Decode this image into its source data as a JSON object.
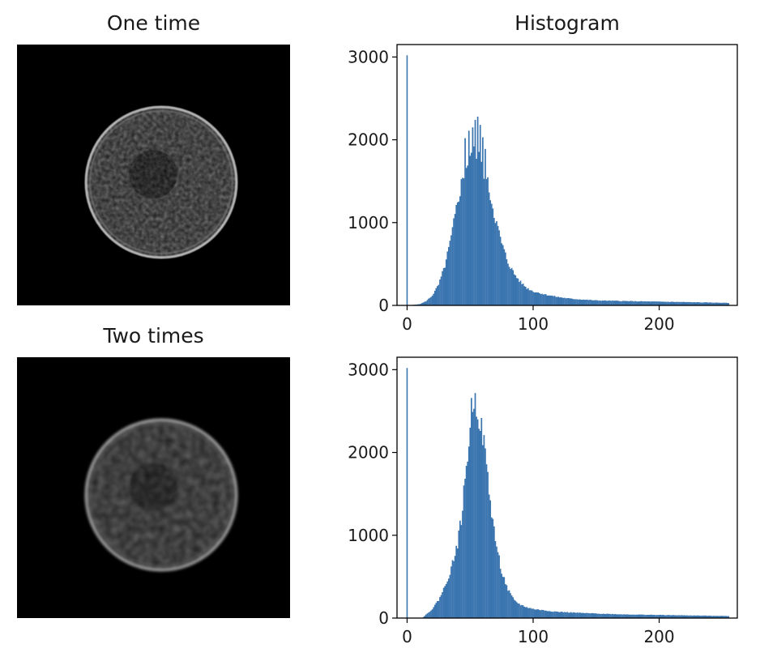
{
  "titles": {
    "row1_image": "One time",
    "row1_hist": "Histogram",
    "row2_image": "Two times"
  },
  "colors": {
    "bar": "#3b75af",
    "axis": "#000000",
    "image_bg": "#000000"
  },
  "chart_data": [
    {
      "type": "bar",
      "title": "Histogram",
      "xlabel": "",
      "ylabel": "",
      "xlim": [
        -8,
        262
      ],
      "ylim": [
        0,
        3150
      ],
      "xticks": [
        0,
        100,
        200
      ],
      "yticks": [
        0,
        1000,
        2000,
        3000
      ],
      "grid": false,
      "spike": {
        "x": 0,
        "value": 3020
      },
      "bins": {
        "start": 1,
        "end": 255,
        "points": [
          [
            1,
            0
          ],
          [
            10,
            15
          ],
          [
            15,
            50
          ],
          [
            20,
            120
          ],
          [
            25,
            250
          ],
          [
            30,
            480
          ],
          [
            35,
            820
          ],
          [
            40,
            1250
          ],
          [
            45,
            1600
          ],
          [
            50,
            1820
          ],
          [
            55,
            1830
          ],
          [
            60,
            1680
          ],
          [
            65,
            1400
          ],
          [
            70,
            1050
          ],
          [
            75,
            750
          ],
          [
            80,
            520
          ],
          [
            85,
            380
          ],
          [
            90,
            280
          ],
          [
            95,
            210
          ],
          [
            100,
            170
          ],
          [
            110,
            130
          ],
          [
            120,
            100
          ],
          [
            130,
            80
          ],
          [
            150,
            60
          ],
          [
            180,
            50
          ],
          [
            220,
            40
          ],
          [
            255,
            30
          ]
        ],
        "peaks": [
          [
            46,
            2020
          ],
          [
            49,
            2110
          ],
          [
            52,
            2150
          ],
          [
            54,
            2240
          ],
          [
            56,
            2280
          ],
          [
            58,
            2180
          ],
          [
            60,
            2030
          ],
          [
            62,
            1890
          ]
        ]
      }
    },
    {
      "type": "bar",
      "title": "",
      "xlabel": "",
      "ylabel": "",
      "xlim": [
        -8,
        262
      ],
      "ylim": [
        0,
        3150
      ],
      "xticks": [
        0,
        100,
        200
      ],
      "yticks": [
        0,
        1000,
        2000,
        3000
      ],
      "grid": false,
      "spike": {
        "x": 0,
        "value": 3020
      },
      "bins": {
        "start": 1,
        "end": 255,
        "points": [
          [
            1,
            0
          ],
          [
            12,
            0
          ],
          [
            15,
            40
          ],
          [
            20,
            110
          ],
          [
            25,
            220
          ],
          [
            30,
            380
          ],
          [
            35,
            600
          ],
          [
            40,
            900
          ],
          [
            43,
            1200
          ],
          [
            46,
            1650
          ],
          [
            49,
            2150
          ],
          [
            51,
            2500
          ],
          [
            53,
            2660
          ],
          [
            55,
            2580
          ],
          [
            57,
            2450
          ],
          [
            60,
            2200
          ],
          [
            63,
            1850
          ],
          [
            66,
            1400
          ],
          [
            70,
            950
          ],
          [
            75,
            560
          ],
          [
            80,
            340
          ],
          [
            85,
            210
          ],
          [
            90,
            160
          ],
          [
            95,
            130
          ],
          [
            100,
            110
          ],
          [
            110,
            90
          ],
          [
            120,
            75
          ],
          [
            140,
            60
          ],
          [
            170,
            45
          ],
          [
            210,
            35
          ],
          [
            255,
            25
          ]
        ],
        "peaks": []
      }
    }
  ]
}
